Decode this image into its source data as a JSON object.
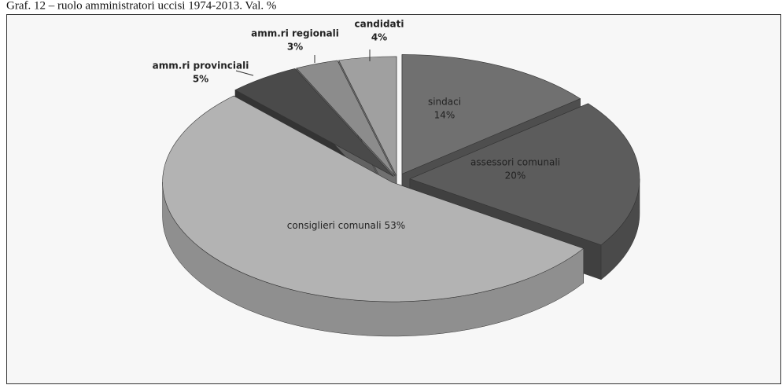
{
  "chart_data": {
    "type": "pie",
    "title": "Graf. 12 – ruolo amministratori uccisi 1974-2013. Val. %",
    "categories": [
      "sindaci",
      "assessori comunali",
      "consiglieri comunali",
      "amm.ri provinciali",
      "amm.ri regionali",
      "candidati"
    ],
    "values": [
      14,
      20,
      53,
      5,
      3,
      4
    ],
    "value_labels": [
      "14%",
      "20%",
      "53%",
      "5%",
      "3%",
      "4%"
    ],
    "colors": [
      "#707070",
      "#5c5c5c",
      "#b3b3b3",
      "#4a4a4a",
      "#8c8c8c",
      "#a0a0a0"
    ]
  }
}
